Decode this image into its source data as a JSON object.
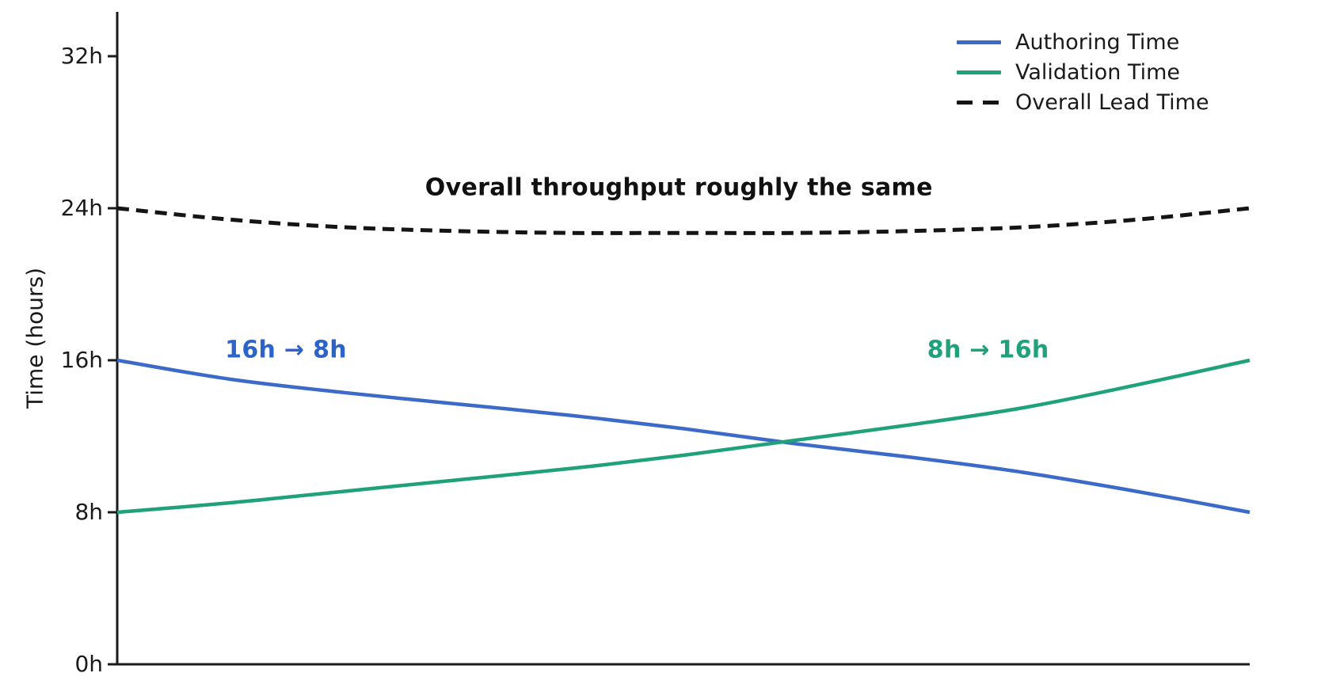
{
  "chart_data": {
    "type": "line",
    "title": "",
    "xlabel": "",
    "ylabel": "Time (hours)",
    "background": "#ffffff",
    "axis_color": "#1a1a1a",
    "grid": false,
    "x_axis": {
      "tick_labels": [],
      "note": "no x tick labels shown; x is an implicit progression from left to right"
    },
    "y_axis": {
      "label": "Time (hours)",
      "unit": "h",
      "range": [
        0,
        34
      ],
      "ticks": [
        {
          "value": 0,
          "label": "0h"
        },
        {
          "value": 8,
          "label": "8h"
        },
        {
          "value": 16,
          "label": "16h"
        },
        {
          "value": 24,
          "label": "24h"
        },
        {
          "value": 32,
          "label": "32h"
        }
      ]
    },
    "x_percent": [
      0,
      10,
      20,
      30,
      40,
      50,
      60,
      70,
      80,
      90,
      100
    ],
    "series": [
      {
        "name": "Authoring Time",
        "color": "#3c6ac9",
        "style": "solid",
        "values": [
          16.0,
          15.0,
          14.3,
          13.7,
          13.1,
          12.4,
          11.6,
          10.9,
          10.1,
          9.1,
          8.0
        ]
      },
      {
        "name": "Validation Time",
        "color": "#1fa179",
        "style": "solid",
        "values": [
          8.0,
          8.5,
          9.1,
          9.7,
          10.3,
          11.0,
          11.8,
          12.6,
          13.5,
          14.7,
          16.0
        ]
      },
      {
        "name": "Overall Lead Time",
        "color": "#151515",
        "style": "dashed",
        "values": [
          24.0,
          23.4,
          23.0,
          22.8,
          22.7,
          22.7,
          22.7,
          22.8,
          23.0,
          23.4,
          24.0
        ]
      }
    ],
    "legend": {
      "position": "upper right",
      "frame": false
    },
    "annotations": [
      {
        "text": "Overall throughput roughly the same",
        "color": "#111111",
        "x_percent": 49.6,
        "y_hours": 25.1
      },
      {
        "text": "16h → 8h",
        "color": "#2c63cb",
        "x_percent": 14.9,
        "y_hours": 16.55
      },
      {
        "text": "8h → 16h",
        "color": "#1fa179",
        "x_percent": 76.9,
        "y_hours": 16.55
      }
    ]
  }
}
